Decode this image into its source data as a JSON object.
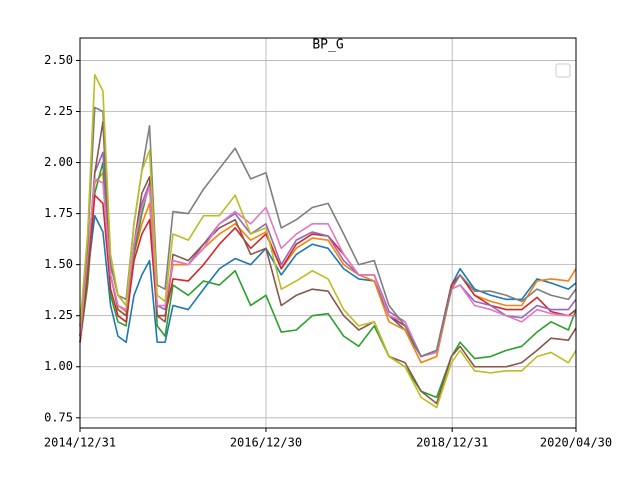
{
  "chart_data": {
    "type": "line",
    "title": "BP_G",
    "x": [
      "2014/12/31",
      "2015/01/30",
      "2015/02/27",
      "2015/03/31",
      "2015/04/30",
      "2015/05/29",
      "2015/06/30",
      "2015/07/31",
      "2015/08/31",
      "2015/09/30",
      "2015/10/30",
      "2015/11/30",
      "2015/12/31",
      "2016/02/29",
      "2016/04/29",
      "2016/06/30",
      "2016/08/31",
      "2016/10/31",
      "2016/12/30",
      "2017/02/28",
      "2017/04/28",
      "2017/06/30",
      "2017/08/31",
      "2017/10/31",
      "2017/12/29",
      "2018/02/28",
      "2018/04/27",
      "2018/06/29",
      "2018/08/31",
      "2018/10/31",
      "2018/12/28",
      "2019/01/31",
      "2019/03/29",
      "2019/05/31",
      "2019/07/31",
      "2019/09/30",
      "2019/11/29",
      "2020/01/23",
      "2020/03/31",
      "2020/04/30"
    ],
    "series": [
      {
        "color": "#1f77b4",
        "values": [
          1.12,
          1.45,
          1.74,
          1.66,
          1.3,
          1.15,
          1.12,
          1.35,
          1.45,
          1.52,
          1.12,
          1.12,
          1.3,
          1.28,
          1.38,
          1.48,
          1.53,
          1.5,
          1.58,
          1.45,
          1.55,
          1.6,
          1.58,
          1.48,
          1.43,
          1.42,
          1.25,
          1.18,
          1.05,
          1.08,
          1.4,
          1.48,
          1.38,
          1.35,
          1.33,
          1.33,
          1.43,
          1.41,
          1.38,
          1.41
        ]
      },
      {
        "color": "#ff7f0e",
        "values": [
          1.15,
          1.5,
          1.9,
          1.95,
          1.45,
          1.3,
          1.27,
          1.55,
          1.7,
          1.8,
          1.3,
          1.28,
          1.5,
          1.5,
          1.58,
          1.65,
          1.7,
          1.62,
          1.66,
          1.48,
          1.58,
          1.63,
          1.62,
          1.5,
          1.45,
          1.42,
          1.22,
          1.18,
          1.02,
          1.05,
          1.38,
          1.45,
          1.35,
          1.32,
          1.3,
          1.3,
          1.42,
          1.43,
          1.42,
          1.48
        ]
      },
      {
        "color": "#2ca02c",
        "values": [
          1.12,
          1.4,
          1.85,
          2.0,
          1.35,
          1.22,
          1.2,
          1.55,
          1.75,
          1.9,
          1.2,
          1.15,
          1.4,
          1.35,
          1.42,
          1.4,
          1.47,
          1.3,
          1.35,
          1.17,
          1.18,
          1.25,
          1.26,
          1.15,
          1.1,
          1.2,
          1.05,
          1.0,
          0.88,
          0.85,
          1.05,
          1.12,
          1.04,
          1.05,
          1.08,
          1.1,
          1.17,
          1.22,
          1.18,
          1.28
        ]
      },
      {
        "color": "#d62728",
        "values": [
          1.12,
          1.45,
          1.84,
          1.8,
          1.38,
          1.25,
          1.22,
          1.52,
          1.65,
          1.72,
          1.25,
          1.25,
          1.43,
          1.42,
          1.5,
          1.6,
          1.68,
          1.58,
          1.65,
          1.48,
          1.6,
          1.65,
          1.64,
          1.55,
          1.45,
          1.45,
          1.25,
          1.2,
          1.05,
          1.08,
          1.4,
          1.45,
          1.35,
          1.3,
          1.28,
          1.28,
          1.34,
          1.27,
          1.25,
          1.28
        ]
      },
      {
        "color": "#9467bd",
        "values": [
          1.15,
          1.5,
          1.95,
          2.05,
          1.5,
          1.35,
          1.3,
          1.58,
          1.8,
          1.9,
          1.3,
          1.28,
          1.52,
          1.5,
          1.6,
          1.7,
          1.75,
          1.65,
          1.7,
          1.5,
          1.62,
          1.66,
          1.64,
          1.52,
          1.45,
          1.45,
          1.27,
          1.22,
          1.05,
          1.08,
          1.38,
          1.4,
          1.32,
          1.3,
          1.25,
          1.24,
          1.3,
          1.28,
          1.28,
          1.33
        ]
      },
      {
        "color": "#8c564b",
        "values": [
          1.15,
          1.5,
          1.95,
          2.2,
          1.45,
          1.28,
          1.25,
          1.6,
          1.85,
          1.93,
          1.25,
          1.22,
          1.55,
          1.52,
          1.6,
          1.68,
          1.72,
          1.55,
          1.58,
          1.3,
          1.35,
          1.38,
          1.37,
          1.25,
          1.18,
          1.22,
          1.05,
          1.02,
          0.88,
          0.82,
          1.05,
          1.1,
          1.0,
          1.0,
          1.0,
          1.02,
          1.08,
          1.14,
          1.13,
          1.19
        ]
      },
      {
        "color": "#e377c2",
        "values": [
          1.15,
          1.55,
          1.92,
          1.9,
          1.45,
          1.3,
          1.28,
          1.6,
          1.78,
          1.88,
          1.3,
          1.3,
          1.52,
          1.5,
          1.58,
          1.7,
          1.76,
          1.7,
          1.78,
          1.58,
          1.65,
          1.7,
          1.7,
          1.55,
          1.45,
          1.45,
          1.25,
          1.22,
          1.05,
          1.07,
          1.38,
          1.4,
          1.3,
          1.28,
          1.25,
          1.22,
          1.28,
          1.26,
          1.25,
          1.25
        ]
      },
      {
        "color": "#7f7f7f",
        "values": [
          1.2,
          1.6,
          2.27,
          2.25,
          1.5,
          1.35,
          1.33,
          1.7,
          1.96,
          2.18,
          1.4,
          1.38,
          1.76,
          1.75,
          1.87,
          1.97,
          2.07,
          1.92,
          1.95,
          1.68,
          1.72,
          1.78,
          1.8,
          1.65,
          1.5,
          1.52,
          1.3,
          1.2,
          1.05,
          1.08,
          1.38,
          1.45,
          1.37,
          1.37,
          1.35,
          1.32,
          1.38,
          1.35,
          1.33,
          1.38
        ]
      },
      {
        "color": "#bcbd22",
        "values": [
          1.2,
          1.65,
          2.43,
          2.35,
          1.55,
          1.35,
          1.3,
          1.7,
          1.96,
          2.06,
          1.35,
          1.32,
          1.65,
          1.62,
          1.74,
          1.74,
          1.84,
          1.65,
          1.68,
          1.38,
          1.42,
          1.47,
          1.43,
          1.28,
          1.2,
          1.22,
          1.05,
          1.0,
          0.85,
          0.8,
          1.02,
          1.08,
          0.98,
          0.97,
          0.98,
          0.98,
          1.05,
          1.07,
          1.02,
          1.08
        ]
      }
    ],
    "xlim": [
      "2014/12/31",
      "2020/04/30"
    ],
    "xticks": [
      "2014/12/31",
      "2016/12/30",
      "2018/12/31",
      "2020/04/30"
    ],
    "ylim": [
      0.7,
      2.61
    ],
    "yticks": [
      {
        "value": 0.75,
        "label": "0.75"
      },
      {
        "value": 1.0,
        "label": "1.00"
      },
      {
        "value": 1.25,
        "label": "1.25"
      },
      {
        "value": 1.5,
        "label": "1.50"
      },
      {
        "value": 1.75,
        "label": "1.75"
      },
      {
        "value": 2.0,
        "label": "2.00"
      },
      {
        "value": 2.25,
        "label": "2.25"
      },
      {
        "value": 2.5,
        "label": "2.50"
      }
    ],
    "grid": true,
    "legend": "upper right"
  }
}
